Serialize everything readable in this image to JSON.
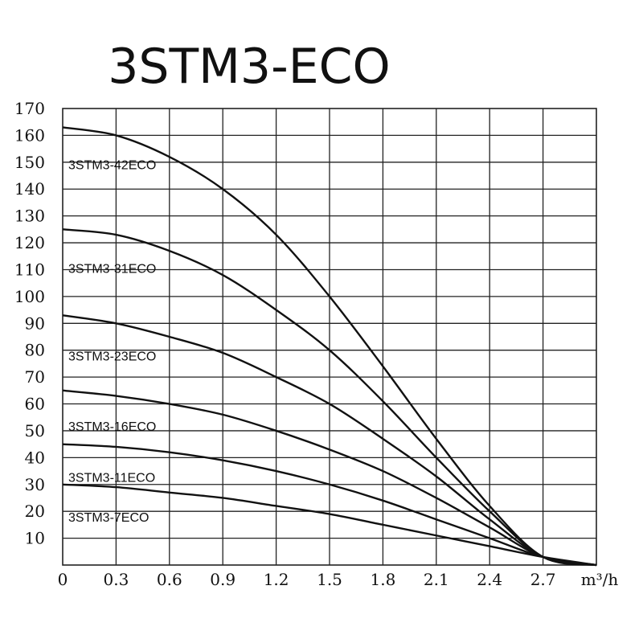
{
  "chart_data": {
    "type": "line",
    "title": "3STM3-ECO",
    "xlabel": "m³/h",
    "ylabel": "",
    "xlim": [
      0,
      3.0
    ],
    "ylim": [
      0,
      170
    ],
    "x_ticks": [
      "0",
      "0.3",
      "0.6",
      "0.9",
      "1.2",
      "1.5",
      "1.8",
      "2.1",
      "2.4",
      "2.7"
    ],
    "y_ticks": [
      "10",
      "20",
      "30",
      "40",
      "50",
      "60",
      "70",
      "80",
      "90",
      "100",
      "110",
      "120",
      "130",
      "140",
      "150",
      "160",
      "170"
    ],
    "grid": true,
    "series": [
      {
        "name": "3STM3-42ECO",
        "x": [
          0,
          0.3,
          0.6,
          0.9,
          1.2,
          1.5,
          1.8,
          2.1,
          2.4,
          2.7,
          3.0
        ],
        "y": [
          163,
          160,
          152,
          140,
          123,
          100,
          74,
          47,
          22,
          3,
          0
        ]
      },
      {
        "name": "3STM3-31ECO",
        "x": [
          0,
          0.3,
          0.6,
          0.9,
          1.2,
          1.5,
          1.8,
          2.1,
          2.4,
          2.7,
          3.0
        ],
        "y": [
          125,
          123,
          117,
          108,
          95,
          80,
          61,
          40,
          20,
          3,
          0
        ]
      },
      {
        "name": "3STM3-23ECO",
        "x": [
          0,
          0.3,
          0.6,
          0.9,
          1.2,
          1.5,
          1.8,
          2.1,
          2.4,
          2.7,
          3.0
        ],
        "y": [
          93,
          90,
          85,
          79,
          70,
          60,
          47,
          33,
          17,
          3,
          0
        ]
      },
      {
        "name": "3STM3-16ECO",
        "x": [
          0,
          0.3,
          0.6,
          0.9,
          1.2,
          1.5,
          1.8,
          2.1,
          2.4,
          2.7,
          3.0
        ],
        "y": [
          65,
          63,
          60,
          56,
          50,
          43,
          35,
          25,
          14,
          3,
          0
        ]
      },
      {
        "name": "3STM3-11ECO",
        "x": [
          0,
          0.3,
          0.6,
          0.9,
          1.2,
          1.5,
          1.8,
          2.1,
          2.4,
          2.7,
          3.0
        ],
        "y": [
          45,
          44,
          42,
          39,
          35,
          30,
          24,
          17,
          10,
          3,
          0
        ]
      },
      {
        "name": "3STM3-7ECO",
        "x": [
          0,
          0.3,
          0.6,
          0.9,
          1.2,
          1.5,
          1.8,
          2.1,
          2.4,
          2.7,
          3.0
        ],
        "y": [
          30,
          29,
          27,
          25,
          22,
          19,
          15,
          11,
          7,
          3,
          0
        ]
      }
    ]
  }
}
